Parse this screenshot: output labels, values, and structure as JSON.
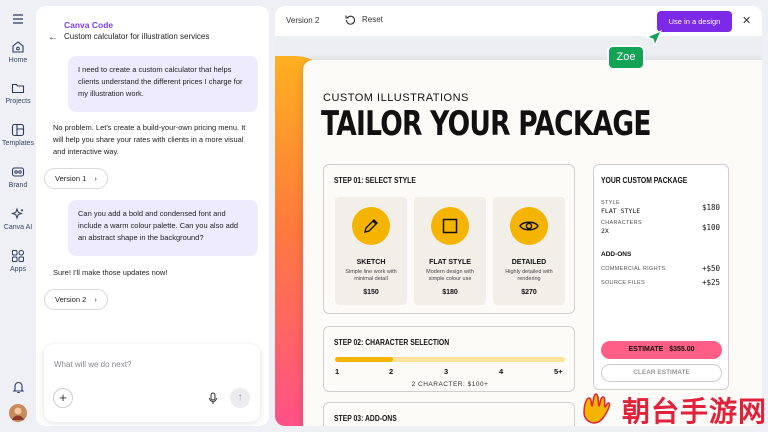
{
  "rail": {
    "items": [
      {
        "label": "Home",
        "icon": "home-icon"
      },
      {
        "label": "Projects",
        "icon": "folder-icon"
      },
      {
        "label": "Templates",
        "icon": "templates-icon"
      },
      {
        "label": "Brand",
        "icon": "brand-icon"
      },
      {
        "label": "Canva AI",
        "icon": "sparkle-icon"
      },
      {
        "label": "Apps",
        "icon": "apps-icon"
      }
    ]
  },
  "chat": {
    "title": "Canva Code",
    "subtitle": "Custom calculator for illustration services",
    "messages": [
      {
        "role": "user",
        "text": "I need to create a custom calculator that helps clients understand the different prices I charge for my illustration work."
      },
      {
        "role": "assistant",
        "text": "No problem. Let's create a build-your-own pricing menu. It will help you share your rates with clients in a more visual and interactive way.",
        "version_label": "Version 1"
      },
      {
        "role": "user",
        "text": "Can you add a bold and condensed font and include a warm colour palette. Can you also add an abstract shape in the background?"
      },
      {
        "role": "assistant",
        "text": "Sure! I'll make those updates now!",
        "version_label": "Version 2"
      }
    ],
    "input_placeholder": "What will we do next?"
  },
  "topbar": {
    "version": "Version 2",
    "reset_label": "Reset",
    "use_button": "Use in a design"
  },
  "collaborator": {
    "name": "Zoe",
    "color": "#13a356"
  },
  "design": {
    "kicker": "CUSTOM ILLUSTRATIONS",
    "title": "TAILOR YOUR PACKAGE",
    "step1": {
      "heading": "STEP 01: SELECT STYLE",
      "cards": [
        {
          "title": "SKETCH",
          "desc": "Simple line work with minimal detail",
          "price": "$150",
          "icon": "pencil-icon"
        },
        {
          "title": "FLAT STYLE",
          "desc": "Modern design with simple colour use",
          "price": "$180",
          "icon": "square-icon"
        },
        {
          "title": "DETAILED",
          "desc": "Highly detailed with rendering",
          "price": "$270",
          "icon": "eye-icon"
        }
      ]
    },
    "step2": {
      "heading": "STEP 02: CHARACTER SELECTION",
      "ticks": [
        "1",
        "2",
        "3",
        "4",
        "5+"
      ],
      "slider_value": 2,
      "note": "2 CHARACTER: $100+"
    },
    "step3": {
      "heading": "STEP 03: ADD-ONS"
    },
    "panel": {
      "heading": "YOUR CUSTOM PACKAGE",
      "style_label": "STYLE",
      "style_value": "FLAT STYLE",
      "style_amount": "$180",
      "characters_label": "CHARACTERS",
      "characters_value": "2X",
      "characters_amount": "$100",
      "addons_heading": "ADD-ONS",
      "commercial_label": "COMMERCIAL RIGHTS",
      "commercial_amount": "+$50",
      "source_label": "SOURCE FILES",
      "source_amount": "+$25",
      "estimate_label": "ESTIMATE",
      "estimate_value": "$355.00",
      "clear_label": "CLEAR ESTIMATE"
    }
  },
  "watermark": {
    "text": "朝台手游网"
  },
  "colors": {
    "accent": "#7d2ae8",
    "yellow": "#f4b400",
    "pink": "#ff5f85"
  }
}
